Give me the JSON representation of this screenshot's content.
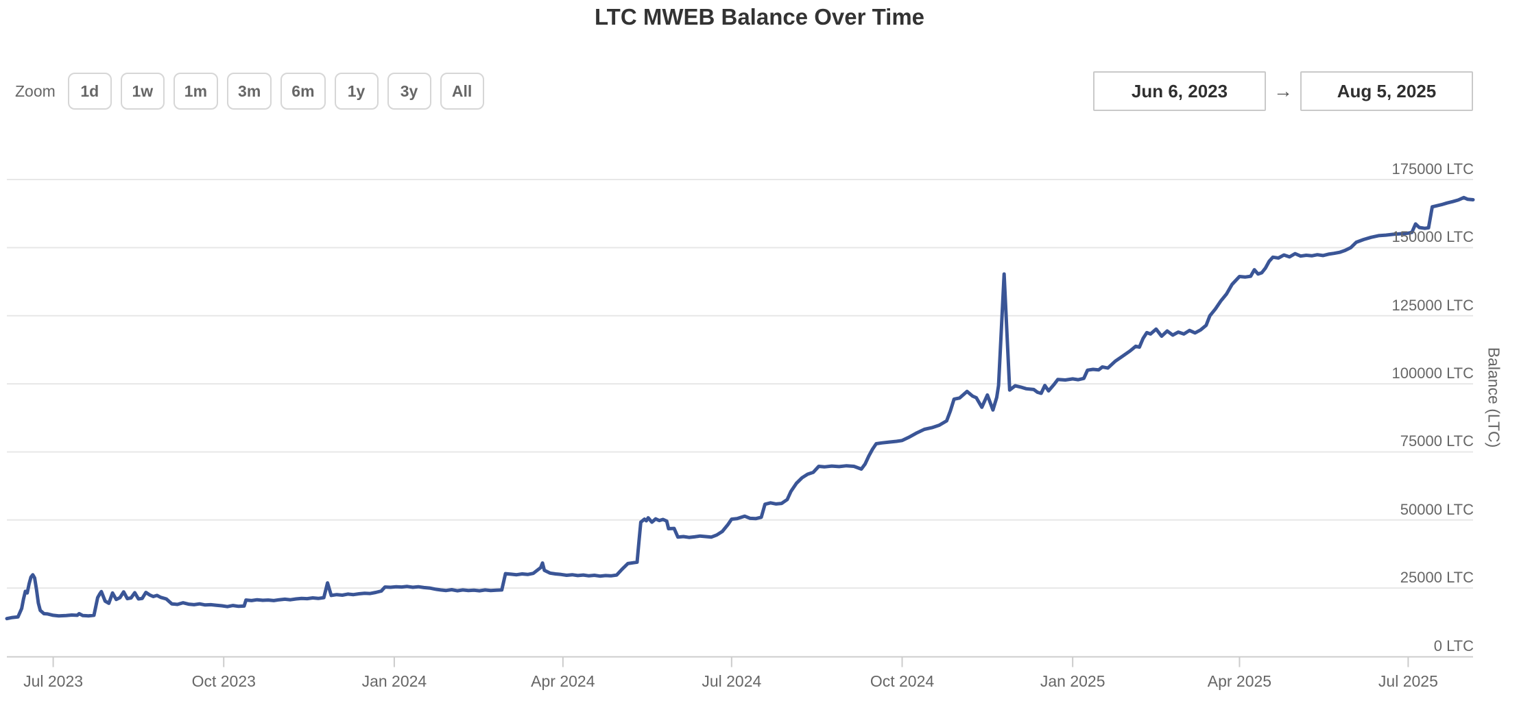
{
  "header": {
    "title": "LTC MWEB Balance Over Time"
  },
  "controls": {
    "zoom_label": "Zoom",
    "zoom_buttons": [
      "1d",
      "1w",
      "1m",
      "3m",
      "6m",
      "1y",
      "3y",
      "All"
    ],
    "range_from": "Jun 6, 2023",
    "range_to": "Aug 5, 2025",
    "arrow": "→"
  },
  "chart_data": {
    "type": "line",
    "title": "LTC MWEB Balance Over Time",
    "ylabel": "Balance (LTC)",
    "series_name": "Balance",
    "series_color": "#3a5596",
    "grid": true,
    "legend_position": "none",
    "x_range": [
      "2023-06-06",
      "2025-08-05"
    ],
    "ylim": [
      0,
      185000
    ],
    "y_ticks": [
      {
        "value": 0,
        "label": "0 LTC"
      },
      {
        "value": 25000,
        "label": "25000 LTC"
      },
      {
        "value": 50000,
        "label": "50000 LTC"
      },
      {
        "value": 75000,
        "label": "75000 LTC"
      },
      {
        "value": 100000,
        "label": "100000 LTC"
      },
      {
        "value": 125000,
        "label": "125000 LTC"
      },
      {
        "value": 150000,
        "label": "150000 LTC"
      },
      {
        "value": 175000,
        "label": "175000 LTC"
      }
    ],
    "x_ticks": [
      {
        "date": "2023-07-01",
        "label": "Jul 2023"
      },
      {
        "date": "2023-10-01",
        "label": "Oct 2023"
      },
      {
        "date": "2024-01-01",
        "label": "Jan 2024"
      },
      {
        "date": "2024-04-01",
        "label": "Apr 2024"
      },
      {
        "date": "2024-07-01",
        "label": "Jul 2024"
      },
      {
        "date": "2024-10-01",
        "label": "Oct 2024"
      },
      {
        "date": "2025-01-01",
        "label": "Jan 2025"
      },
      {
        "date": "2025-04-01",
        "label": "Apr 2025"
      },
      {
        "date": "2025-07-01",
        "label": "Jul 2025"
      }
    ],
    "points": [
      [
        "2023-06-06",
        13800
      ],
      [
        "2023-06-09",
        14200
      ],
      [
        "2023-06-12",
        14400
      ],
      [
        "2023-06-14",
        17500
      ],
      [
        "2023-06-15",
        21000
      ],
      [
        "2023-06-16",
        23800
      ],
      [
        "2023-06-17",
        23200
      ],
      [
        "2023-06-18",
        26500
      ],
      [
        "2023-06-19",
        29000
      ],
      [
        "2023-06-20",
        29900
      ],
      [
        "2023-06-21",
        28700
      ],
      [
        "2023-06-22",
        24500
      ],
      [
        "2023-06-23",
        19500
      ],
      [
        "2023-06-24",
        16800
      ],
      [
        "2023-06-26",
        15600
      ],
      [
        "2023-06-28",
        15500
      ],
      [
        "2023-07-01",
        15000
      ],
      [
        "2023-07-04",
        14800
      ],
      [
        "2023-07-08",
        14900
      ],
      [
        "2023-07-11",
        15100
      ],
      [
        "2023-07-14",
        15000
      ],
      [
        "2023-07-15",
        15600
      ],
      [
        "2023-07-17",
        14900
      ],
      [
        "2023-07-20",
        14800
      ],
      [
        "2023-07-23",
        15000
      ],
      [
        "2023-07-25",
        21500
      ],
      [
        "2023-07-26",
        22700
      ],
      [
        "2023-07-27",
        23700
      ],
      [
        "2023-07-29",
        20200
      ],
      [
        "2023-07-31",
        19400
      ],
      [
        "2023-08-02",
        23200
      ],
      [
        "2023-08-04",
        20800
      ],
      [
        "2023-08-06",
        21500
      ],
      [
        "2023-08-08",
        23600
      ],
      [
        "2023-08-10",
        21100
      ],
      [
        "2023-08-12",
        21400
      ],
      [
        "2023-08-14",
        23300
      ],
      [
        "2023-08-16",
        21000
      ],
      [
        "2023-08-18",
        21200
      ],
      [
        "2023-08-20",
        23400
      ],
      [
        "2023-08-22",
        22500
      ],
      [
        "2023-08-24",
        21900
      ],
      [
        "2023-08-26",
        22300
      ],
      [
        "2023-08-28",
        21600
      ],
      [
        "2023-08-31",
        21000
      ],
      [
        "2023-09-03",
        19200
      ],
      [
        "2023-09-06",
        19000
      ],
      [
        "2023-09-09",
        19600
      ],
      [
        "2023-09-12",
        19100
      ],
      [
        "2023-09-15",
        18900
      ],
      [
        "2023-09-18",
        19200
      ],
      [
        "2023-09-21",
        18800
      ],
      [
        "2023-09-24",
        18900
      ],
      [
        "2023-09-27",
        18700
      ],
      [
        "2023-09-30",
        18500
      ],
      [
        "2023-10-03",
        18200
      ],
      [
        "2023-10-06",
        18600
      ],
      [
        "2023-10-09",
        18300
      ],
      [
        "2023-10-12",
        18400
      ],
      [
        "2023-10-13",
        20600
      ],
      [
        "2023-10-16",
        20400
      ],
      [
        "2023-10-19",
        20700
      ],
      [
        "2023-10-22",
        20500
      ],
      [
        "2023-10-25",
        20600
      ],
      [
        "2023-10-28",
        20400
      ],
      [
        "2023-10-31",
        20700
      ],
      [
        "2023-11-03",
        20900
      ],
      [
        "2023-11-06",
        20700
      ],
      [
        "2023-11-09",
        21000
      ],
      [
        "2023-11-12",
        21200
      ],
      [
        "2023-11-15",
        21100
      ],
      [
        "2023-11-18",
        21400
      ],
      [
        "2023-11-21",
        21200
      ],
      [
        "2023-11-24",
        21500
      ],
      [
        "2023-11-26",
        26900
      ],
      [
        "2023-11-28",
        22300
      ],
      [
        "2023-12-01",
        22600
      ],
      [
        "2023-12-04",
        22400
      ],
      [
        "2023-12-07",
        22800
      ],
      [
        "2023-12-10",
        22600
      ],
      [
        "2023-12-13",
        22900
      ],
      [
        "2023-12-16",
        23100
      ],
      [
        "2023-12-19",
        23000
      ],
      [
        "2023-12-22",
        23400
      ],
      [
        "2023-12-25",
        23900
      ],
      [
        "2023-12-27",
        25400
      ],
      [
        "2023-12-30",
        25300
      ],
      [
        "2024-01-02",
        25500
      ],
      [
        "2024-01-05",
        25400
      ],
      [
        "2024-01-08",
        25600
      ],
      [
        "2024-01-11",
        25300
      ],
      [
        "2024-01-14",
        25500
      ],
      [
        "2024-01-17",
        25200
      ],
      [
        "2024-01-20",
        25000
      ],
      [
        "2024-01-23",
        24600
      ],
      [
        "2024-01-26",
        24300
      ],
      [
        "2024-01-29",
        24100
      ],
      [
        "2024-02-01",
        24400
      ],
      [
        "2024-02-04",
        24000
      ],
      [
        "2024-02-07",
        24300
      ],
      [
        "2024-02-10",
        24100
      ],
      [
        "2024-02-13",
        24200
      ],
      [
        "2024-02-16",
        24000
      ],
      [
        "2024-02-19",
        24300
      ],
      [
        "2024-02-22",
        24100
      ],
      [
        "2024-02-25",
        24200
      ],
      [
        "2024-02-28",
        24300
      ],
      [
        "2024-03-01",
        30300
      ],
      [
        "2024-03-04",
        30100
      ],
      [
        "2024-03-07",
        29900
      ],
      [
        "2024-03-10",
        30200
      ],
      [
        "2024-03-13",
        30000
      ],
      [
        "2024-03-16",
        30400
      ],
      [
        "2024-03-20",
        32500
      ],
      [
        "2024-03-21",
        34200
      ],
      [
        "2024-03-22",
        31500
      ],
      [
        "2024-03-25",
        30500
      ],
      [
        "2024-03-28",
        30200
      ],
      [
        "2024-03-31",
        30000
      ],
      [
        "2024-04-03",
        29700
      ],
      [
        "2024-04-06",
        29900
      ],
      [
        "2024-04-09",
        29600
      ],
      [
        "2024-04-12",
        29800
      ],
      [
        "2024-04-15",
        29500
      ],
      [
        "2024-04-18",
        29700
      ],
      [
        "2024-04-21",
        29400
      ],
      [
        "2024-04-24",
        29600
      ],
      [
        "2024-04-27",
        29500
      ],
      [
        "2024-04-30",
        29800
      ],
      [
        "2024-05-03",
        32000
      ],
      [
        "2024-05-06",
        34000
      ],
      [
        "2024-05-09",
        34300
      ],
      [
        "2024-05-11",
        34500
      ],
      [
        "2024-05-12",
        42000
      ],
      [
        "2024-05-13",
        49200
      ],
      [
        "2024-05-15",
        50300
      ],
      [
        "2024-05-16",
        49700
      ],
      [
        "2024-05-17",
        50800
      ],
      [
        "2024-05-19",
        49200
      ],
      [
        "2024-05-21",
        50400
      ],
      [
        "2024-05-23",
        49800
      ],
      [
        "2024-05-25",
        50200
      ],
      [
        "2024-05-27",
        49600
      ],
      [
        "2024-05-28",
        46800
      ],
      [
        "2024-05-31",
        46900
      ],
      [
        "2024-06-02",
        43700
      ],
      [
        "2024-06-05",
        43900
      ],
      [
        "2024-06-08",
        43600
      ],
      [
        "2024-06-11",
        43800
      ],
      [
        "2024-06-14",
        44100
      ],
      [
        "2024-06-17",
        43900
      ],
      [
        "2024-06-20",
        43700
      ],
      [
        "2024-06-23",
        44500
      ],
      [
        "2024-06-26",
        45800
      ],
      [
        "2024-06-29",
        48300
      ],
      [
        "2024-07-01",
        50300
      ],
      [
        "2024-07-04",
        50500
      ],
      [
        "2024-07-08",
        51400
      ],
      [
        "2024-07-11",
        50600
      ],
      [
        "2024-07-14",
        50500
      ],
      [
        "2024-07-17",
        51000
      ],
      [
        "2024-07-19",
        55800
      ],
      [
        "2024-07-22",
        56300
      ],
      [
        "2024-07-25",
        55900
      ],
      [
        "2024-07-28",
        56100
      ],
      [
        "2024-07-31",
        57500
      ],
      [
        "2024-08-02",
        60500
      ],
      [
        "2024-08-05",
        63500
      ],
      [
        "2024-08-08",
        65500
      ],
      [
        "2024-08-11",
        66800
      ],
      [
        "2024-08-14",
        67500
      ],
      [
        "2024-08-17",
        69700
      ],
      [
        "2024-08-20",
        69500
      ],
      [
        "2024-08-24",
        69800
      ],
      [
        "2024-08-28",
        69600
      ],
      [
        "2024-09-01",
        69900
      ],
      [
        "2024-09-05",
        69700
      ],
      [
        "2024-09-09",
        68700
      ],
      [
        "2024-09-11",
        70500
      ],
      [
        "2024-09-13",
        73500
      ],
      [
        "2024-09-15",
        76000
      ],
      [
        "2024-09-17",
        78000
      ],
      [
        "2024-09-20",
        78300
      ],
      [
        "2024-09-24",
        78600
      ],
      [
        "2024-09-28",
        78900
      ],
      [
        "2024-10-01",
        79200
      ],
      [
        "2024-10-05",
        80500
      ],
      [
        "2024-10-09",
        82000
      ],
      [
        "2024-10-13",
        83300
      ],
      [
        "2024-10-17",
        83900
      ],
      [
        "2024-10-21",
        84800
      ],
      [
        "2024-10-25",
        86400
      ],
      [
        "2024-10-27",
        90000
      ],
      [
        "2024-10-29",
        94400
      ],
      [
        "2024-11-01",
        94800
      ],
      [
        "2024-11-05",
        97200
      ],
      [
        "2024-11-08",
        95500
      ],
      [
        "2024-11-10",
        94900
      ],
      [
        "2024-11-13",
        91400
      ],
      [
        "2024-11-16",
        95900
      ],
      [
        "2024-11-19",
        90400
      ],
      [
        "2024-11-21",
        95000
      ],
      [
        "2024-11-22",
        99400
      ],
      [
        "2024-11-25",
        140300
      ],
      [
        "2024-11-28",
        97700
      ],
      [
        "2024-12-01",
        99300
      ],
      [
        "2024-12-04",
        98800
      ],
      [
        "2024-12-07",
        98200
      ],
      [
        "2024-12-11",
        97900
      ],
      [
        "2024-12-13",
        96900
      ],
      [
        "2024-12-15",
        96500
      ],
      [
        "2024-12-17",
        99400
      ],
      [
        "2024-12-19",
        97400
      ],
      [
        "2024-12-22",
        99800
      ],
      [
        "2024-12-24",
        101600
      ],
      [
        "2024-12-28",
        101400
      ],
      [
        "2025-01-01",
        101800
      ],
      [
        "2025-01-04",
        101500
      ],
      [
        "2025-01-07",
        102000
      ],
      [
        "2025-01-09",
        105000
      ],
      [
        "2025-01-12",
        105300
      ],
      [
        "2025-01-15",
        105100
      ],
      [
        "2025-01-17",
        106200
      ],
      [
        "2025-01-20",
        105800
      ],
      [
        "2025-01-24",
        108300
      ],
      [
        "2025-01-28",
        110200
      ],
      [
        "2025-02-01",
        112100
      ],
      [
        "2025-02-04",
        113800
      ],
      [
        "2025-02-06",
        113500
      ],
      [
        "2025-02-08",
        116700
      ],
      [
        "2025-02-10",
        118800
      ],
      [
        "2025-02-12",
        118300
      ],
      [
        "2025-02-15",
        120100
      ],
      [
        "2025-02-18",
        117500
      ],
      [
        "2025-02-21",
        119400
      ],
      [
        "2025-02-24",
        117900
      ],
      [
        "2025-02-27",
        119000
      ],
      [
        "2025-03-02",
        118300
      ],
      [
        "2025-03-05",
        119600
      ],
      [
        "2025-03-08",
        118700
      ],
      [
        "2025-03-11",
        119800
      ],
      [
        "2025-03-14",
        121500
      ],
      [
        "2025-03-16",
        125000
      ],
      [
        "2025-03-19",
        127500
      ],
      [
        "2025-03-22",
        130500
      ],
      [
        "2025-03-25",
        133000
      ],
      [
        "2025-03-28",
        136500
      ],
      [
        "2025-04-01",
        139400
      ],
      [
        "2025-04-04",
        139200
      ],
      [
        "2025-04-07",
        139500
      ],
      [
        "2025-04-09",
        141900
      ],
      [
        "2025-04-11",
        140300
      ],
      [
        "2025-04-13",
        140800
      ],
      [
        "2025-04-15",
        142500
      ],
      [
        "2025-04-17",
        145000
      ],
      [
        "2025-04-19",
        146500
      ],
      [
        "2025-04-22",
        146200
      ],
      [
        "2025-04-25",
        147300
      ],
      [
        "2025-04-28",
        146600
      ],
      [
        "2025-05-01",
        147800
      ],
      [
        "2025-05-04",
        146900
      ],
      [
        "2025-05-07",
        147200
      ],
      [
        "2025-05-10",
        147000
      ],
      [
        "2025-05-13",
        147400
      ],
      [
        "2025-05-16",
        147100
      ],
      [
        "2025-05-19",
        147600
      ],
      [
        "2025-05-22",
        147900
      ],
      [
        "2025-05-25",
        148300
      ],
      [
        "2025-05-28",
        149000
      ],
      [
        "2025-05-31",
        150000
      ],
      [
        "2025-06-03",
        152000
      ],
      [
        "2025-06-07",
        153000
      ],
      [
        "2025-06-11",
        153800
      ],
      [
        "2025-06-15",
        154400
      ],
      [
        "2025-06-19",
        154600
      ],
      [
        "2025-06-23",
        154900
      ],
      [
        "2025-06-27",
        155100
      ],
      [
        "2025-07-01",
        155300
      ],
      [
        "2025-07-03",
        155600
      ],
      [
        "2025-07-05",
        158700
      ],
      [
        "2025-07-07",
        157400
      ],
      [
        "2025-07-10",
        157100
      ],
      [
        "2025-07-12",
        157300
      ],
      [
        "2025-07-14",
        165000
      ],
      [
        "2025-07-16",
        165300
      ],
      [
        "2025-07-19",
        165800
      ],
      [
        "2025-07-22",
        166400
      ],
      [
        "2025-07-25",
        166900
      ],
      [
        "2025-07-28",
        167500
      ],
      [
        "2025-07-31",
        168400
      ],
      [
        "2025-08-02",
        167800
      ],
      [
        "2025-08-05",
        167600
      ]
    ]
  }
}
